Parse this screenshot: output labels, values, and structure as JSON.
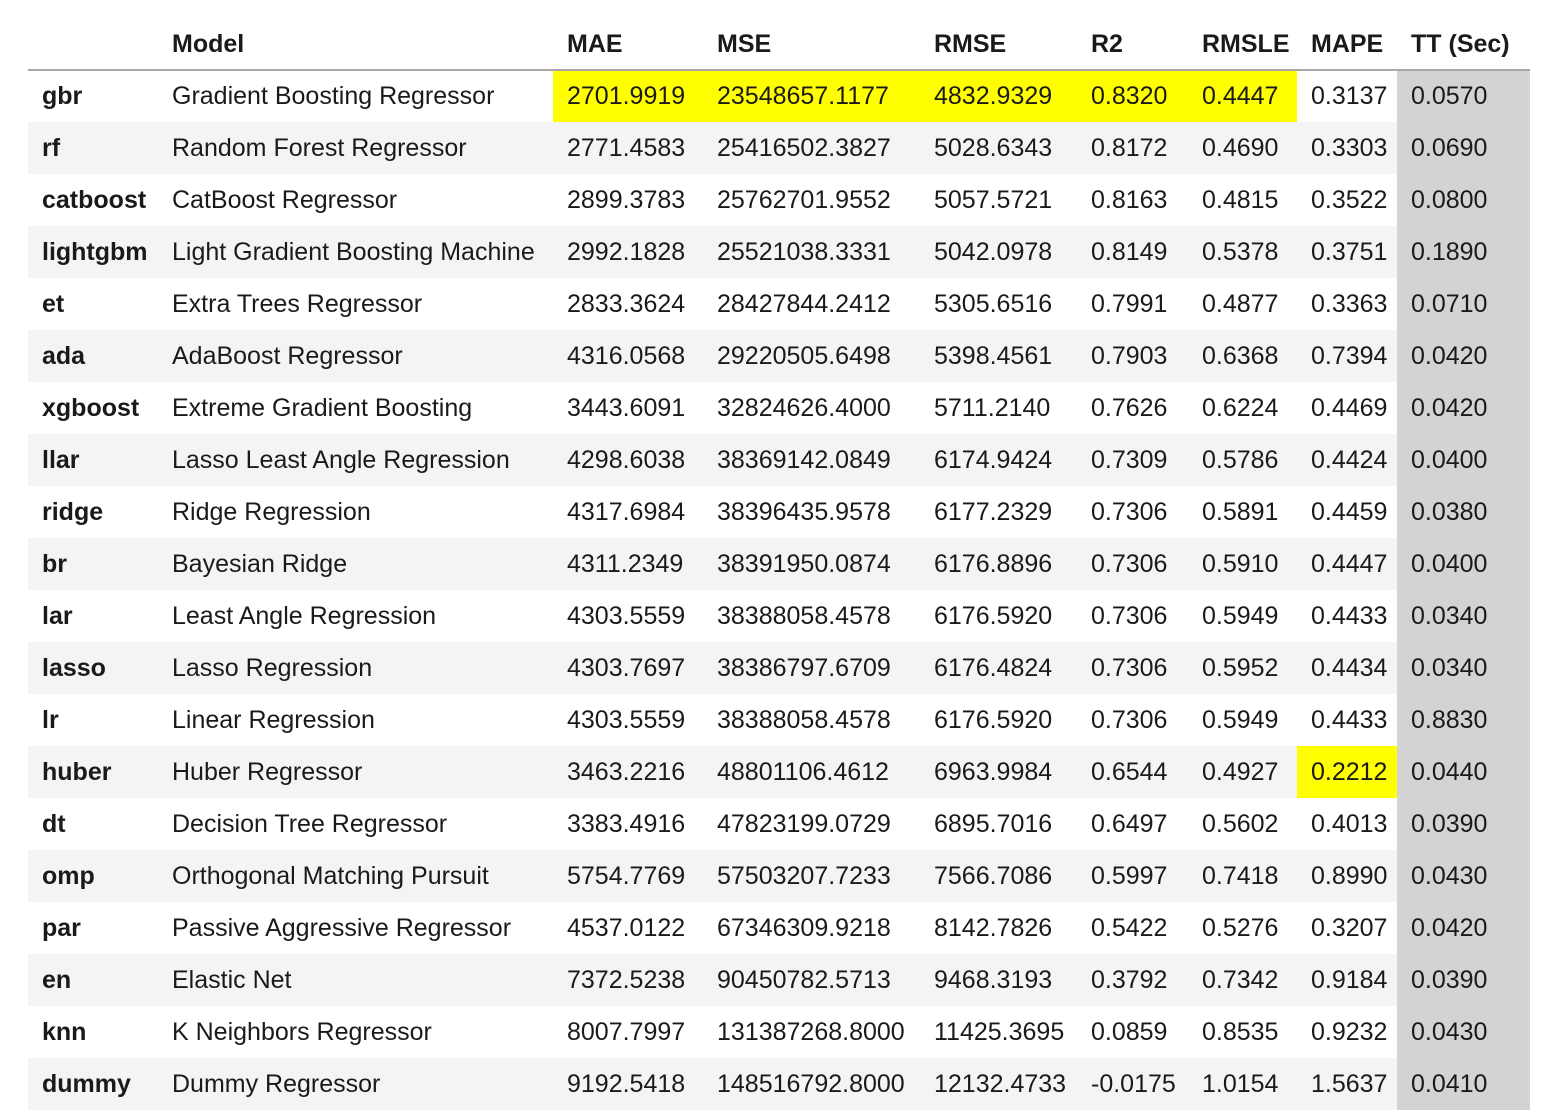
{
  "table": {
    "index_header": "",
    "columns": [
      {
        "key": "model",
        "label": "Model"
      },
      {
        "key": "mae",
        "label": "MAE"
      },
      {
        "key": "mse",
        "label": "MSE"
      },
      {
        "key": "rmse",
        "label": "RMSE"
      },
      {
        "key": "r2",
        "label": "R2"
      },
      {
        "key": "rmsle",
        "label": "RMSLE"
      },
      {
        "key": "mape",
        "label": "MAPE"
      },
      {
        "key": "tt",
        "label": "TT (Sec)"
      }
    ],
    "styles": {
      "highlight_color": "#ffff00",
      "tt_column_color": "#d3d3d3",
      "stripe_color": "#f4f4f4",
      "header_border_color": "#a8a8a8",
      "text_color": "#1a1a1a"
    },
    "rows": [
      {
        "id": "gbr",
        "model": "Gradient Boosting Regressor",
        "mae": "2701.9919",
        "mse": "23548657.1177",
        "rmse": "4832.9329",
        "r2": "0.8320",
        "rmsle": "0.4447",
        "mape": "0.3137",
        "tt": "0.0570",
        "highlight": [
          "mae",
          "mse",
          "rmse",
          "r2",
          "rmsle"
        ]
      },
      {
        "id": "rf",
        "model": "Random Forest Regressor",
        "mae": "2771.4583",
        "mse": "25416502.3827",
        "rmse": "5028.6343",
        "r2": "0.8172",
        "rmsle": "0.4690",
        "mape": "0.3303",
        "tt": "0.0690",
        "highlight": []
      },
      {
        "id": "catboost",
        "model": "CatBoost Regressor",
        "mae": "2899.3783",
        "mse": "25762701.9552",
        "rmse": "5057.5721",
        "r2": "0.8163",
        "rmsle": "0.4815",
        "mape": "0.3522",
        "tt": "0.0800",
        "highlight": []
      },
      {
        "id": "lightgbm",
        "model": "Light Gradient Boosting Machine",
        "mae": "2992.1828",
        "mse": "25521038.3331",
        "rmse": "5042.0978",
        "r2": "0.8149",
        "rmsle": "0.5378",
        "mape": "0.3751",
        "tt": "0.1890",
        "highlight": []
      },
      {
        "id": "et",
        "model": "Extra Trees Regressor",
        "mae": "2833.3624",
        "mse": "28427844.2412",
        "rmse": "5305.6516",
        "r2": "0.7991",
        "rmsle": "0.4877",
        "mape": "0.3363",
        "tt": "0.0710",
        "highlight": []
      },
      {
        "id": "ada",
        "model": "AdaBoost Regressor",
        "mae": "4316.0568",
        "mse": "29220505.6498",
        "rmse": "5398.4561",
        "r2": "0.7903",
        "rmsle": "0.6368",
        "mape": "0.7394",
        "tt": "0.0420",
        "highlight": []
      },
      {
        "id": "xgboost",
        "model": "Extreme Gradient Boosting",
        "mae": "3443.6091",
        "mse": "32824626.4000",
        "rmse": "5711.2140",
        "r2": "0.7626",
        "rmsle": "0.6224",
        "mape": "0.4469",
        "tt": "0.0420",
        "highlight": []
      },
      {
        "id": "llar",
        "model": "Lasso Least Angle Regression",
        "mae": "4298.6038",
        "mse": "38369142.0849",
        "rmse": "6174.9424",
        "r2": "0.7309",
        "rmsle": "0.5786",
        "mape": "0.4424",
        "tt": "0.0400",
        "highlight": []
      },
      {
        "id": "ridge",
        "model": "Ridge Regression",
        "mae": "4317.6984",
        "mse": "38396435.9578",
        "rmse": "6177.2329",
        "r2": "0.7306",
        "rmsle": "0.5891",
        "mape": "0.4459",
        "tt": "0.0380",
        "highlight": []
      },
      {
        "id": "br",
        "model": "Bayesian Ridge",
        "mae": "4311.2349",
        "mse": "38391950.0874",
        "rmse": "6176.8896",
        "r2": "0.7306",
        "rmsle": "0.5910",
        "mape": "0.4447",
        "tt": "0.0400",
        "highlight": []
      },
      {
        "id": "lar",
        "model": "Least Angle Regression",
        "mae": "4303.5559",
        "mse": "38388058.4578",
        "rmse": "6176.5920",
        "r2": "0.7306",
        "rmsle": "0.5949",
        "mape": "0.4433",
        "tt": "0.0340",
        "highlight": []
      },
      {
        "id": "lasso",
        "model": "Lasso Regression",
        "mae": "4303.7697",
        "mse": "38386797.6709",
        "rmse": "6176.4824",
        "r2": "0.7306",
        "rmsle": "0.5952",
        "mape": "0.4434",
        "tt": "0.0340",
        "highlight": []
      },
      {
        "id": "lr",
        "model": "Linear Regression",
        "mae": "4303.5559",
        "mse": "38388058.4578",
        "rmse": "6176.5920",
        "r2": "0.7306",
        "rmsle": "0.5949",
        "mape": "0.4433",
        "tt": "0.8830",
        "highlight": []
      },
      {
        "id": "huber",
        "model": "Huber Regressor",
        "mae": "3463.2216",
        "mse": "48801106.4612",
        "rmse": "6963.9984",
        "r2": "0.6544",
        "rmsle": "0.4927",
        "mape": "0.2212",
        "tt": "0.0440",
        "highlight": [
          "mape"
        ]
      },
      {
        "id": "dt",
        "model": "Decision Tree Regressor",
        "mae": "3383.4916",
        "mse": "47823199.0729",
        "rmse": "6895.7016",
        "r2": "0.6497",
        "rmsle": "0.5602",
        "mape": "0.4013",
        "tt": "0.0390",
        "highlight": []
      },
      {
        "id": "omp",
        "model": "Orthogonal Matching Pursuit",
        "mae": "5754.7769",
        "mse": "57503207.7233",
        "rmse": "7566.7086",
        "r2": "0.5997",
        "rmsle": "0.7418",
        "mape": "0.8990",
        "tt": "0.0430",
        "highlight": []
      },
      {
        "id": "par",
        "model": "Passive Aggressive Regressor",
        "mae": "4537.0122",
        "mse": "67346309.9218",
        "rmse": "8142.7826",
        "r2": "0.5422",
        "rmsle": "0.5276",
        "mape": "0.3207",
        "tt": "0.0420",
        "highlight": []
      },
      {
        "id": "en",
        "model": "Elastic Net",
        "mae": "7372.5238",
        "mse": "90450782.5713",
        "rmse": "9468.3193",
        "r2": "0.3792",
        "rmsle": "0.7342",
        "mape": "0.9184",
        "tt": "0.0390",
        "highlight": []
      },
      {
        "id": "knn",
        "model": "K Neighbors Regressor",
        "mae": "8007.7997",
        "mse": "131387268.8000",
        "rmse": "11425.3695",
        "r2": "0.0859",
        "rmsle": "0.8535",
        "mape": "0.9232",
        "tt": "0.0430",
        "highlight": []
      },
      {
        "id": "dummy",
        "model": "Dummy Regressor",
        "mae": "9192.5418",
        "mse": "148516792.8000",
        "rmse": "12132.4733",
        "r2": "-0.0175",
        "rmsle": "1.0154",
        "mape": "1.5637",
        "tt": "0.0410",
        "highlight": []
      }
    ]
  }
}
